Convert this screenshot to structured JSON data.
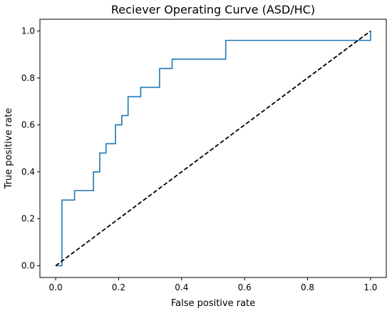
{
  "chart_data": {
    "type": "line",
    "title": "Reciever Operating Curve (ASD/HC)",
    "xlabel": "False positive rate",
    "ylabel": "True positive rate",
    "xlim": [
      -0.05,
      1.05
    ],
    "ylim": [
      -0.05,
      1.05
    ],
    "xticks": [
      0.0,
      0.2,
      0.4,
      0.6,
      0.8,
      1.0
    ],
    "yticks": [
      0.0,
      0.2,
      0.4,
      0.6,
      0.8,
      1.0
    ],
    "xtick_labels": [
      "0.0",
      "0.2",
      "0.4",
      "0.6",
      "0.8",
      "1.0"
    ],
    "ytick_labels": [
      "0.0",
      "0.2",
      "0.4",
      "0.6",
      "0.8",
      "1.0"
    ],
    "grid": false,
    "series": [
      {
        "style": "solid",
        "color": "#1f77b4",
        "x": [
          0.0,
          0.02,
          0.02,
          0.06,
          0.06,
          0.12,
          0.12,
          0.14,
          0.14,
          0.16,
          0.16,
          0.19,
          0.19,
          0.21,
          0.21,
          0.23,
          0.23,
          0.27,
          0.27,
          0.33,
          0.33,
          0.37,
          0.37,
          0.54,
          0.54,
          1.0,
          1.0
        ],
        "y": [
          0.0,
          0.0,
          0.28,
          0.28,
          0.32,
          0.32,
          0.4,
          0.4,
          0.48,
          0.48,
          0.52,
          0.52,
          0.6,
          0.6,
          0.64,
          0.64,
          0.72,
          0.72,
          0.76,
          0.76,
          0.84,
          0.84,
          0.88,
          0.88,
          0.96,
          0.96,
          1.0
        ]
      },
      {
        "style": "dashed",
        "color": "#000000",
        "x": [
          0.0,
          1.0
        ],
        "y": [
          0.0,
          1.0
        ]
      }
    ]
  }
}
